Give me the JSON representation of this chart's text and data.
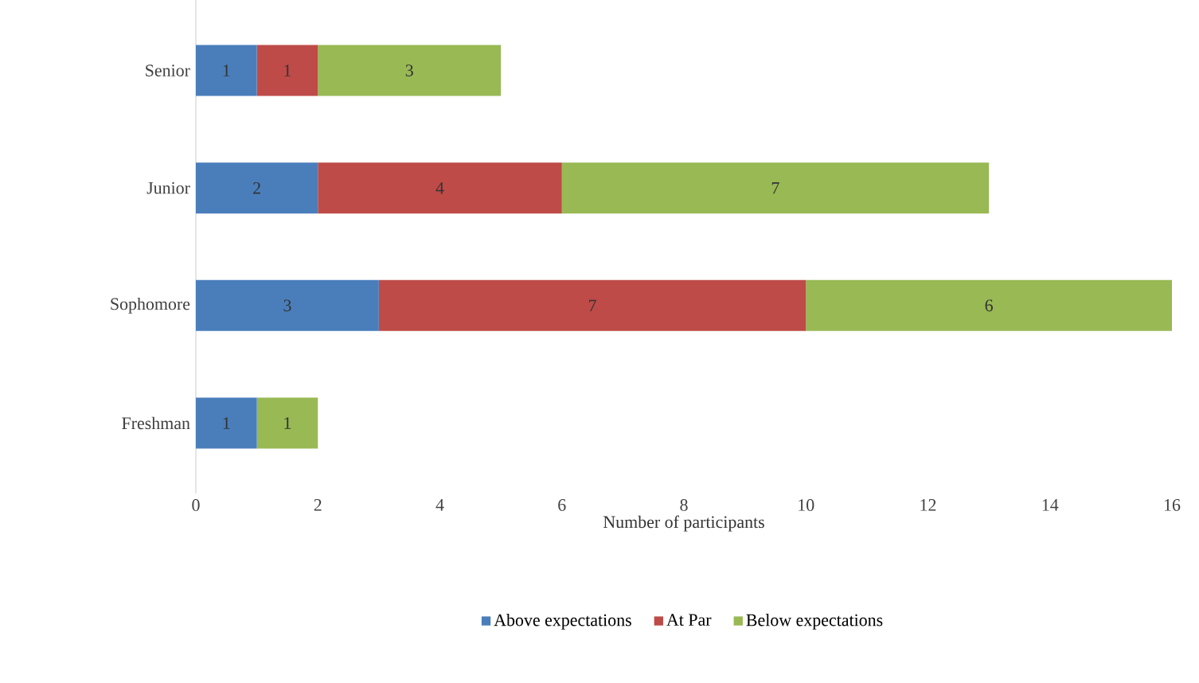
{
  "chart_data": {
    "type": "bar",
    "orientation": "horizontal",
    "stacked": true,
    "xlabel": "Number of participants",
    "categories": [
      "Senior",
      "Junior",
      "Sophomore",
      "Freshman"
    ],
    "series": [
      {
        "name": "Above expectations",
        "color": "#4a7ebb",
        "values": [
          1,
          2,
          3,
          1
        ]
      },
      {
        "name": "At Par",
        "color": "#be4b48",
        "values": [
          1,
          4,
          7,
          null
        ]
      },
      {
        "name": "Below expectations",
        "color": "#98b954",
        "values": [
          3,
          7,
          6,
          1
        ]
      }
    ],
    "xlim": [
      0,
      16
    ],
    "xticks": [
      0,
      2,
      4,
      6,
      8,
      10,
      12,
      14,
      16
    ],
    "data_labels": true,
    "legend": "bottom",
    "grid": false
  }
}
